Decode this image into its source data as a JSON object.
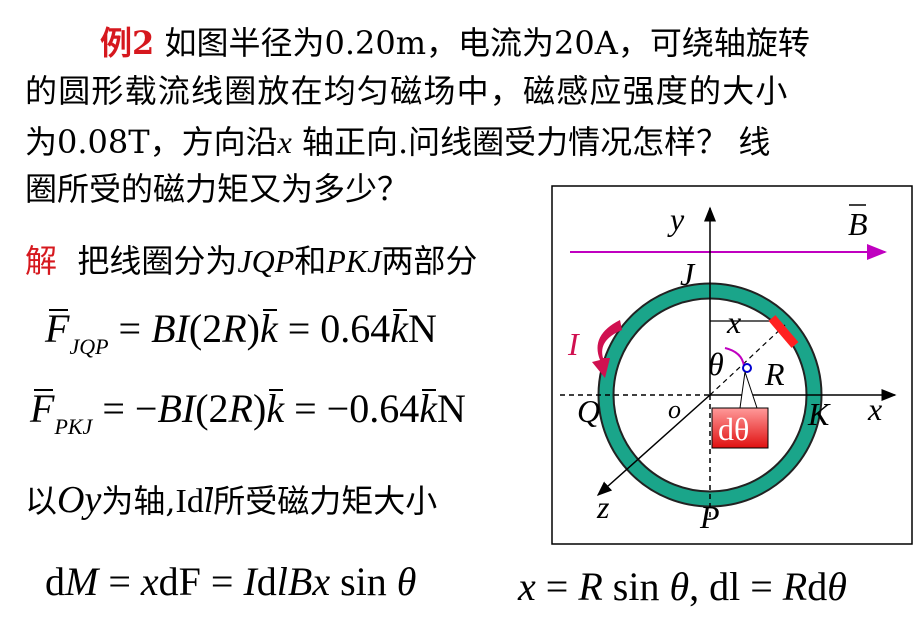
{
  "problem": {
    "label": "例2",
    "lines": [
      [
        "如图半径为0.20m，电流为20A，可绕轴旋转"
      ],
      [
        "的圆形载流线圈放在均匀磁场中，磁感应强度的大小"
      ],
      [
        "为0.08T，方向沿",
        "x",
        " 轴正向.问线圈受力情况怎样？ 线"
      ],
      [
        "圈所受的磁力矩又为多少？"
      ]
    ]
  },
  "solution": {
    "label": "解",
    "parts": [
      "把线圈分为",
      "JQP",
      "和",
      "PKJ",
      "两部分"
    ]
  },
  "equations": [
    [
      "F",
      "JQP",
      " = ",
      "BI",
      "(2",
      "R",
      ")",
      "k",
      " = 0.64",
      "k",
      "N"
    ],
    [
      "F",
      "PKJ",
      " = −",
      "BI",
      "(2",
      "R",
      ")",
      "k",
      " = −0.64",
      "k",
      "N"
    ],
    [
      "以",
      "Oy",
      "为轴,",
      "Id",
      "l",
      "所受磁力矩大小"
    ],
    [
      "d",
      "M",
      " = ",
      "x",
      "dF = ",
      "I",
      "d",
      "l",
      "Bx",
      " sin ",
      "θ"
    ],
    [
      "x",
      " = ",
      "R",
      " sin ",
      "θ",
      ", dl = ",
      "R",
      "d",
      "θ"
    ]
  ],
  "diagram": {
    "y": "y",
    "B": "B",
    "J": "J",
    "x_top": "x",
    "I": "I",
    "theta": "θ",
    "R": "R",
    "Q": "Q",
    "o": "o",
    "K": "K",
    "x_axis": "x",
    "dtheta": "dθ",
    "z": "z",
    "P": "P"
  }
}
